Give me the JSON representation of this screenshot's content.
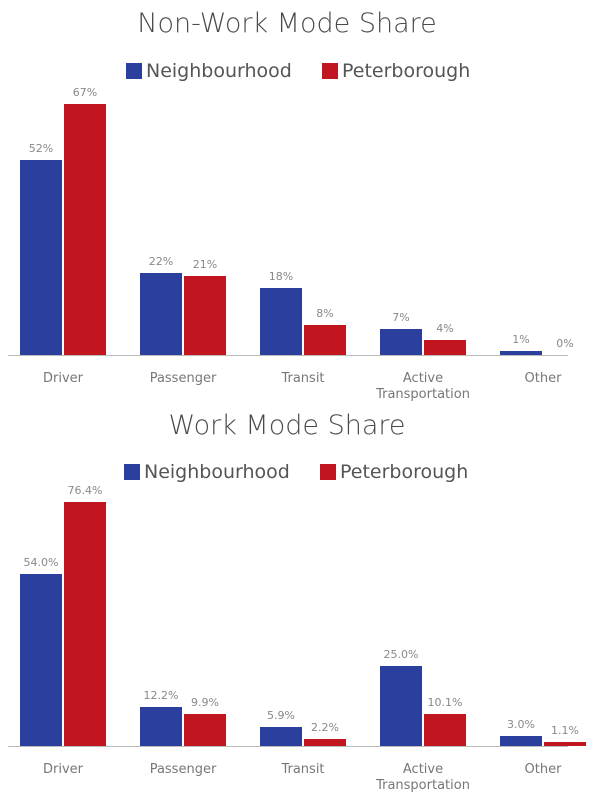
{
  "chart_data": [
    {
      "type": "bar",
      "title": "Non-Work Mode Share",
      "categories": [
        "Driver",
        "Passenger",
        "Transit",
        "Active Transportation",
        "Other"
      ],
      "series": [
        {
          "name": "Neighbourhood",
          "color": "#2b3f9e",
          "values": [
            52,
            22,
            18,
            7,
            1
          ],
          "value_labels": [
            "52%",
            "22%",
            "18%",
            "7%",
            "1%"
          ]
        },
        {
          "name": "Peterborough",
          "color": "#c1161f",
          "values": [
            67,
            21,
            8,
            4,
            0
          ],
          "value_labels": [
            "67%",
            "21%",
            "8%",
            "4%",
            "0%"
          ]
        }
      ]
    },
    {
      "type": "bar",
      "title": "Work Mode Share",
      "categories": [
        "Driver",
        "Passenger",
        "Transit",
        "Active Transportation",
        "Other"
      ],
      "series": [
        {
          "name": "Neighbourhood",
          "color": "#2b3f9e",
          "values": [
            54.0,
            12.2,
            5.9,
            25.0,
            3.0
          ],
          "value_labels": [
            "54.0%",
            "12.2%",
            "5.9%",
            "25.0%",
            "3.0%"
          ]
        },
        {
          "name": "Peterborough",
          "color": "#c1161f",
          "values": [
            76.4,
            9.9,
            2.2,
            10.1,
            1.1
          ],
          "value_labels": [
            "76.4%",
            "9.9%",
            "2.2%",
            "10.1%",
            "1.1%"
          ]
        }
      ]
    }
  ]
}
